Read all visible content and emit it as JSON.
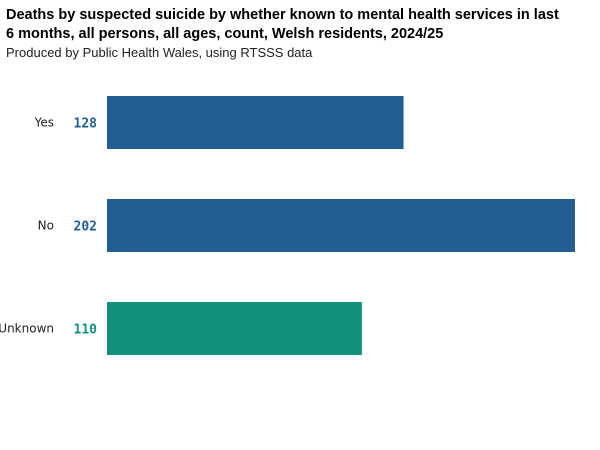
{
  "chart_data": {
    "type": "bar",
    "orientation": "horizontal",
    "title": "Deaths by suspected suicide by whether known to mental health services in last 6 months, all persons, all ages, count, Welsh residents, 2024/25",
    "subtitle": "Produced by Public Health Wales, using RTSSS data",
    "categories": [
      "Yes",
      "No",
      "Unknown"
    ],
    "values": [
      128,
      202,
      110
    ],
    "colors": [
      "#205e93",
      "#205e93",
      "#12907a"
    ],
    "xlim": [
      0,
      202
    ],
    "grid": false,
    "legend": "none"
  }
}
